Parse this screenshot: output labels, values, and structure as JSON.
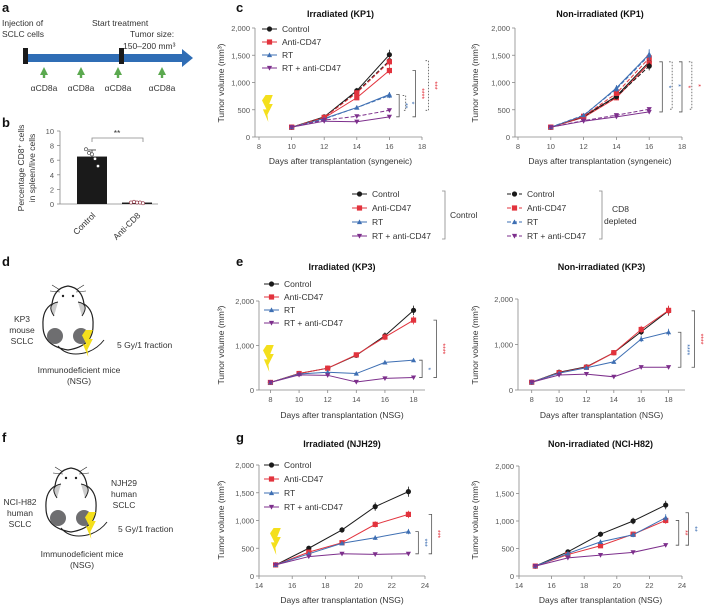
{
  "panel_letters": {
    "a": "a",
    "b": "b",
    "c": "c",
    "d": "d",
    "e": "e",
    "f": "f",
    "g": "g"
  },
  "colors": {
    "control": "#1a1a1a",
    "anti_cd47": "#e2333d",
    "rt": "#3e6fb3",
    "rt_anti_cd47": "#7d2f8c",
    "lightning": "#f4df1c",
    "arrow_green": "#5ba94f",
    "timeline": "#2f6db5",
    "tumor": "#6e6e70"
  },
  "panel_a": {
    "injection": [
      "Injection of",
      "SCLC cells"
    ],
    "start": "Start treatment",
    "tumor_size": [
      "Tumor size:",
      "150–200 mm³"
    ],
    "dose_label": "αCD8a",
    "dose_count": 4
  },
  "panel_d": {
    "tumor": [
      "KP3",
      "mouse",
      "SCLC"
    ],
    "dose": "5 Gy/1 fraction",
    "mice": [
      "Immunodeficient mice",
      "(NSG)"
    ]
  },
  "panel_f": {
    "tumor_left": [
      "NCI-H82",
      "human",
      "SCLC"
    ],
    "tumor_right": [
      "NJH29",
      "human",
      "SCLC"
    ],
    "dose": "5 Gy/1 fraction",
    "mice": [
      "Immunodeficient mice",
      "(NSG)"
    ]
  },
  "legend_shared": {
    "items": [
      "Control",
      "Anti-CD47",
      "RT",
      "RT + anti-CD47"
    ],
    "group_control": "Control",
    "group_depleted": [
      "CD8",
      "depleted"
    ]
  },
  "chart_data": [
    {
      "id": "b",
      "type": "bar",
      "categories": [
        "Control",
        "Anti-CD8"
      ],
      "values": [
        6.5,
        0.2
      ],
      "errors": [
        0.9,
        0.1
      ],
      "points": [
        [
          7.5,
          7.0,
          6.8,
          6.2,
          5.2
        ],
        [
          0.2,
          0.3,
          0.2,
          0.2,
          0.1
        ]
      ],
      "ylabel": [
        "Percentage CD8⁺ cells",
        "in spleen/live cells"
      ],
      "ylim": [
        0,
        10
      ],
      "yticks": [
        0,
        2,
        4,
        6,
        8,
        10
      ],
      "significance": "**"
    },
    {
      "id": "c-left",
      "type": "line",
      "title": "Irradiated (KP1)",
      "xlabel": "Days after transplantation (syngeneic)",
      "ylabel": "Tumor volume (mm³)",
      "xlim": [
        8,
        18
      ],
      "ylim": [
        0,
        2000
      ],
      "xticks": [
        8,
        10,
        12,
        14,
        16,
        18
      ],
      "yticks": [
        0,
        500,
        1000,
        1500,
        2000
      ],
      "ytick_labels": [
        "0",
        "500",
        "1,000",
        "1,500",
        "2,000"
      ],
      "x": [
        10,
        12,
        14,
        16
      ],
      "irradiated": true,
      "legend": true,
      "series": [
        {
          "name": "Control",
          "group": "Control",
          "values": [
            180,
            370,
            850,
            1510
          ]
        },
        {
          "name": "Anti-CD47",
          "group": "Control",
          "values": [
            180,
            350,
            720,
            1220
          ]
        },
        {
          "name": "RT",
          "group": "Control",
          "values": [
            180,
            340,
            540,
            780
          ]
        },
        {
          "name": "RT + anti-CD47",
          "group": "Control",
          "values": [
            180,
            290,
            280,
            370
          ]
        },
        {
          "name": "Control",
          "group": "CD8 depleted",
          "values": [
            180,
            360,
            830,
            1400
          ]
        },
        {
          "name": "Anti-CD47",
          "group": "CD8 depleted",
          "values": [
            180,
            360,
            810,
            1380
          ]
        },
        {
          "name": "RT",
          "group": "CD8 depleted",
          "values": [
            180,
            330,
            540,
            760
          ]
        },
        {
          "name": "RT + anti-CD47",
          "group": "CD8 depleted",
          "values": [
            180,
            310,
            380,
            490
          ]
        }
      ],
      "significance": [
        "**",
        "*",
        "****",
        "***"
      ]
    },
    {
      "id": "c-right",
      "type": "line",
      "title": "Non-irradiated (KP1)",
      "xlabel": "Days after transplantation (syngeneic)",
      "ylabel": "Tumor volume (mm³)",
      "xlim": [
        8,
        18
      ],
      "ylim": [
        0,
        2000
      ],
      "xticks": [
        8,
        10,
        12,
        14,
        16,
        18
      ],
      "yticks": [
        0,
        500,
        1000,
        1500,
        2000
      ],
      "ytick_labels": [
        "0",
        "500",
        "1,000",
        "1,500",
        "2,000"
      ],
      "x": [
        10,
        12,
        14,
        16
      ],
      "irradiated": false,
      "legend": false,
      "series": [
        {
          "name": "Control",
          "group": "Control",
          "values": [
            180,
            380,
            750,
            1380
          ]
        },
        {
          "name": "Anti-CD47",
          "group": "Control",
          "values": [
            180,
            360,
            720,
            1350
          ]
        },
        {
          "name": "RT",
          "group": "Control",
          "values": [
            180,
            390,
            900,
            1520
          ]
        },
        {
          "name": "RT + anti-CD47",
          "group": "Control",
          "values": [
            180,
            290,
            370,
            460
          ]
        },
        {
          "name": "Control",
          "group": "CD8 depleted",
          "values": [
            180,
            370,
            740,
            1300
          ]
        },
        {
          "name": "Anti-CD47",
          "group": "CD8 depleted",
          "values": [
            180,
            380,
            800,
            1450
          ]
        },
        {
          "name": "RT",
          "group": "CD8 depleted",
          "values": [
            180,
            400,
            880,
            1500
          ]
        },
        {
          "name": "RT + anti-CD47",
          "group": "CD8 depleted",
          "values": [
            180,
            300,
            400,
            510
          ]
        }
      ],
      "significance": [
        "*",
        "*",
        "*",
        "*"
      ]
    },
    {
      "id": "e-left",
      "type": "line",
      "title": "Irradiated (KP3)",
      "xlabel": "Days after transplantation (NSG)",
      "ylabel": "Tumor volume (mm³)",
      "xlim": [
        7.2,
        18.8
      ],
      "ylim": [
        0,
        2000
      ],
      "xticks": [
        8,
        10,
        12,
        14,
        16,
        18
      ],
      "yticks": [
        0,
        1000,
        2000
      ],
      "ytick_labels": [
        "0",
        "1,000",
        "2,000"
      ],
      "x": [
        8,
        10,
        12,
        14,
        16,
        18
      ],
      "irradiated": true,
      "legend": true,
      "series": [
        {
          "name": "Control",
          "values": [
            170,
            370,
            490,
            780,
            1220,
            1790
          ]
        },
        {
          "name": "Anti-CD47",
          "values": [
            170,
            370,
            490,
            790,
            1190,
            1570
          ]
        },
        {
          "name": "RT",
          "values": [
            170,
            360,
            400,
            370,
            620,
            670
          ]
        },
        {
          "name": "RT + anti-CD47",
          "values": [
            170,
            340,
            330,
            180,
            260,
            280
          ]
        }
      ],
      "significance": [
        "*",
        "****"
      ]
    },
    {
      "id": "e-right",
      "type": "line",
      "title": "Non-irradiated (KP3)",
      "xlabel": "Days after transplantation (NSG)",
      "ylabel": "Tumor volume (mm³)",
      "xlim": [
        7,
        19.2
      ],
      "ylim": [
        0,
        2000
      ],
      "xticks": [
        8,
        10,
        12,
        14,
        16,
        18
      ],
      "yticks": [
        0,
        1000,
        2000
      ],
      "ytick_labels": [
        "0",
        "1,000",
        "2,000"
      ],
      "x": [
        8,
        10,
        12,
        14,
        16,
        18
      ],
      "irradiated": false,
      "legend": false,
      "series": [
        {
          "name": "Control",
          "values": [
            170,
            390,
            510,
            820,
            1280,
            1740
          ]
        },
        {
          "name": "Anti-CD47",
          "values": [
            170,
            380,
            500,
            820,
            1330,
            1750
          ]
        },
        {
          "name": "RT",
          "values": [
            170,
            370,
            490,
            620,
            1120,
            1270
          ]
        },
        {
          "name": "RT + anti-CD47",
          "values": [
            170,
            330,
            350,
            290,
            500,
            500
          ]
        }
      ],
      "significance": [
        "****",
        "****"
      ]
    },
    {
      "id": "g-left",
      "type": "line",
      "title": "Irradiated (NJH29)",
      "xlabel": "Days after transplantation (NSG)",
      "ylabel": "Tumor volume (mm³)",
      "xlim": [
        14,
        24
      ],
      "ylim": [
        0,
        2000
      ],
      "xticks": [
        14,
        16,
        18,
        20,
        22,
        24
      ],
      "yticks": [
        0,
        500,
        1000,
        1500,
        2000
      ],
      "ytick_labels": [
        "0",
        "500",
        "1,000",
        "1,500",
        "2,000"
      ],
      "x": [
        15,
        17,
        19,
        21,
        23
      ],
      "irradiated": true,
      "legend": true,
      "series": [
        {
          "name": "Control",
          "values": [
            200,
            500,
            830,
            1250,
            1520
          ]
        },
        {
          "name": "Anti-CD47",
          "values": [
            200,
            430,
            600,
            930,
            1110
          ]
        },
        {
          "name": "RT",
          "values": [
            200,
            400,
            590,
            690,
            800
          ]
        },
        {
          "name": "RT + anti-CD47",
          "values": [
            200,
            350,
            400,
            390,
            400
          ]
        }
      ],
      "significance": [
        "***",
        "***"
      ]
    },
    {
      "id": "g-right",
      "type": "line",
      "title": "Non-irradiated (NCI-H82)",
      "xlabel": "Days after transplantation (NSG)",
      "ylabel": "Tumor volume (mm³)",
      "xlim": [
        14,
        24
      ],
      "ylim": [
        0,
        2000
      ],
      "xticks": [
        14,
        16,
        18,
        20,
        22,
        24
      ],
      "yticks": [
        0,
        500,
        1000,
        1500,
        2000
      ],
      "ytick_labels": [
        "0",
        "500",
        "1,000",
        "1,500",
        "2,000"
      ],
      "x": [
        15,
        17,
        19,
        21,
        23
      ],
      "irradiated": false,
      "legend": false,
      "series": [
        {
          "name": "Control",
          "values": [
            180,
            440,
            760,
            1000,
            1290
          ]
        },
        {
          "name": "Anti-CD47",
          "values": [
            180,
            390,
            550,
            760,
            1010
          ]
        },
        {
          "name": "RT",
          "values": [
            180,
            410,
            620,
            750,
            1060
          ]
        },
        {
          "name": "RT + anti-CD47",
          "values": [
            180,
            330,
            380,
            430,
            560
          ]
        }
      ],
      "significance": [
        "**",
        "**"
      ]
    }
  ]
}
